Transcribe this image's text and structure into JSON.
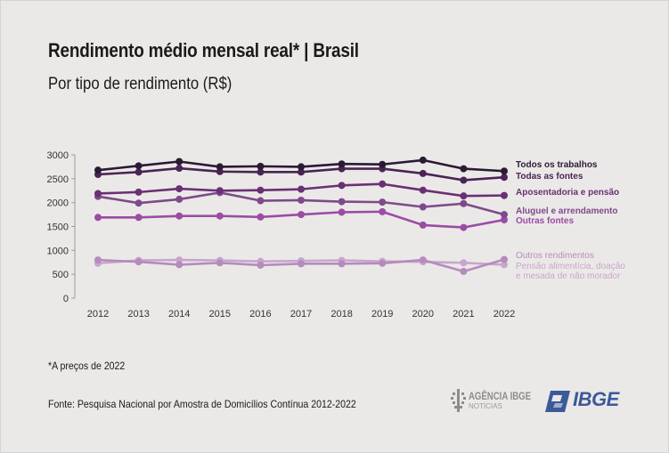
{
  "title": "Rendimento médio mensal real* | Brasil",
  "subtitle": "Por tipo de rendimento (R$)",
  "footnote": "*A preços de 2022",
  "source": "Fonte: Pesquisa Nacional por Amostra de Domicílios Contínua 2012-2022",
  "logos": {
    "agencia_line1": "AGÊNCIA IBGE",
    "agencia_line2": "NOTÍCIAS",
    "ibge": "IBGE"
  },
  "chart_data": {
    "type": "line",
    "x": [
      "2012",
      "2013",
      "2014",
      "2015",
      "2016",
      "2017",
      "2018",
      "2019",
      "2020",
      "2021",
      "2022"
    ],
    "ylim": [
      0,
      3000
    ],
    "yticks": [
      0,
      500,
      1000,
      1500,
      2000,
      2500,
      3000
    ],
    "grid": false,
    "legend": "right, labels at line ends",
    "series": [
      {
        "name": "Todos os trabalhos",
        "color": "#2b1a33",
        "values": [
          2680,
          2770,
          2860,
          2750,
          2760,
          2750,
          2810,
          2800,
          2890,
          2710,
          2660
        ]
      },
      {
        "name": "Todas as fontes",
        "color": "#4a2455",
        "values": [
          2590,
          2640,
          2720,
          2650,
          2640,
          2640,
          2710,
          2710,
          2610,
          2470,
          2530
        ]
      },
      {
        "name": "Aposentadoria e pensão",
        "color": "#6a2f74",
        "values": [
          2190,
          2220,
          2290,
          2250,
          2260,
          2280,
          2360,
          2390,
          2260,
          2140,
          2150
        ]
      },
      {
        "name": "Aluguel e arrendamento",
        "color": "#7e4a8c",
        "values": [
          2130,
          1990,
          2070,
          2210,
          2040,
          2050,
          2020,
          2010,
          1910,
          1980,
          1750
        ]
      },
      {
        "name": "Outras fontes",
        "color": "#9b4ca5",
        "values": [
          1690,
          1690,
          1720,
          1720,
          1700,
          1750,
          1800,
          1810,
          1530,
          1480,
          1640
        ]
      },
      {
        "name": "Outros rendimentos",
        "color": "#b58bbd",
        "values": [
          800,
          760,
          700,
          740,
          690,
          720,
          720,
          730,
          800,
          560,
          810
        ]
      },
      {
        "name": "Pensão alimentícia, doação e mesada de não morador",
        "color": "#c8a6cc",
        "values": [
          730,
          790,
          800,
          790,
          770,
          780,
          790,
          770,
          760,
          740,
          700
        ]
      }
    ],
    "end_labels": [
      {
        "series": "Todos os trabalhos",
        "lines": [
          "Todos os trabalhos"
        ]
      },
      {
        "series": "Todas as fontes",
        "lines": [
          "Todas as fontes"
        ]
      },
      {
        "series": "Aposentadoria e pensão",
        "lines": [
          "Aposentadoria e pensão"
        ]
      },
      {
        "series": "Aluguel e arrendamento",
        "lines": [
          "Aluguel e arrendamento"
        ]
      },
      {
        "series": "Outras fontes",
        "lines": [
          "Outras fontes"
        ]
      },
      {
        "series": "Outros rendimentos",
        "lines": [
          "Outros rendimentos"
        ]
      },
      {
        "series": "Pensão alimentícia, doação e mesada de não morador",
        "lines": [
          "Pensão alimentícia, doação",
          "e mesada de não morador"
        ]
      }
    ]
  }
}
